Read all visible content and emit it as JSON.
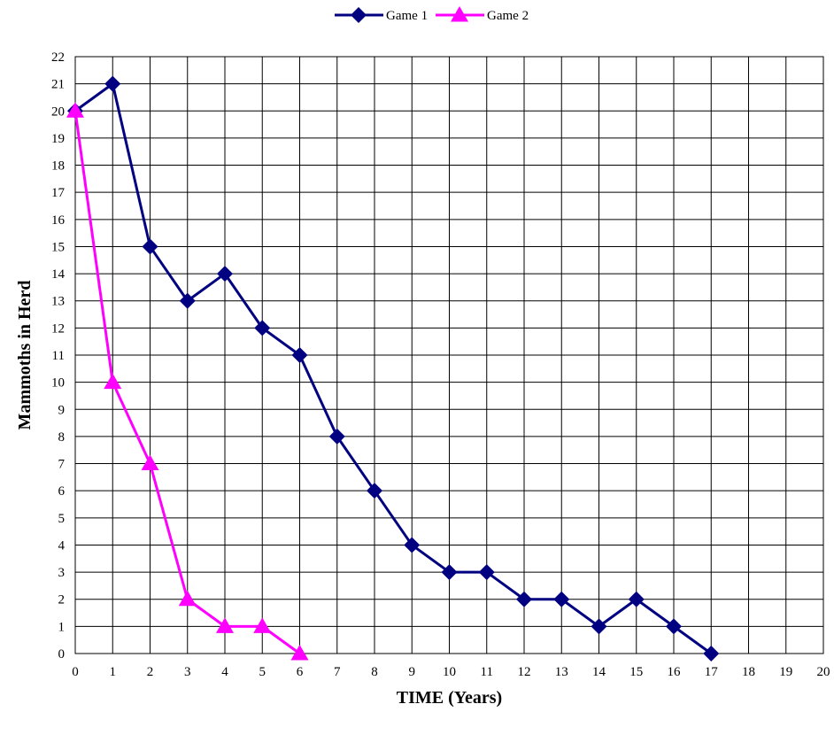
{
  "chart_data": {
    "type": "line",
    "title": "",
    "xlabel": "TIME (Years)",
    "ylabel": "Mammoths in Herd",
    "xlim": [
      0,
      20
    ],
    "ylim": [
      0,
      22
    ],
    "x_ticks": [
      0,
      1,
      2,
      3,
      4,
      5,
      6,
      7,
      8,
      9,
      10,
      11,
      12,
      13,
      14,
      15,
      16,
      17,
      18,
      19,
      20
    ],
    "y_ticks": [
      0,
      1,
      2,
      3,
      4,
      5,
      6,
      7,
      8,
      9,
      10,
      11,
      12,
      13,
      14,
      15,
      16,
      17,
      18,
      19,
      20,
      21,
      22
    ],
    "grid": true,
    "legend_position": "top-center",
    "series": [
      {
        "name": "Game 1",
        "color": "#000080",
        "marker": "diamond",
        "x": [
          0,
          1,
          2,
          3,
          4,
          5,
          6,
          7,
          8,
          9,
          10,
          11,
          12,
          13,
          14,
          15,
          16,
          17
        ],
        "y": [
          20,
          21,
          15,
          13,
          14,
          12,
          11,
          8,
          6,
          4,
          3,
          3,
          2,
          2,
          1,
          2,
          1,
          0
        ]
      },
      {
        "name": "Game 2",
        "color": "#ff00ff",
        "marker": "triangle",
        "x": [
          0,
          1,
          2,
          3,
          4,
          5,
          6
        ],
        "y": [
          20,
          10,
          7,
          2,
          1,
          1,
          0
        ]
      }
    ]
  }
}
